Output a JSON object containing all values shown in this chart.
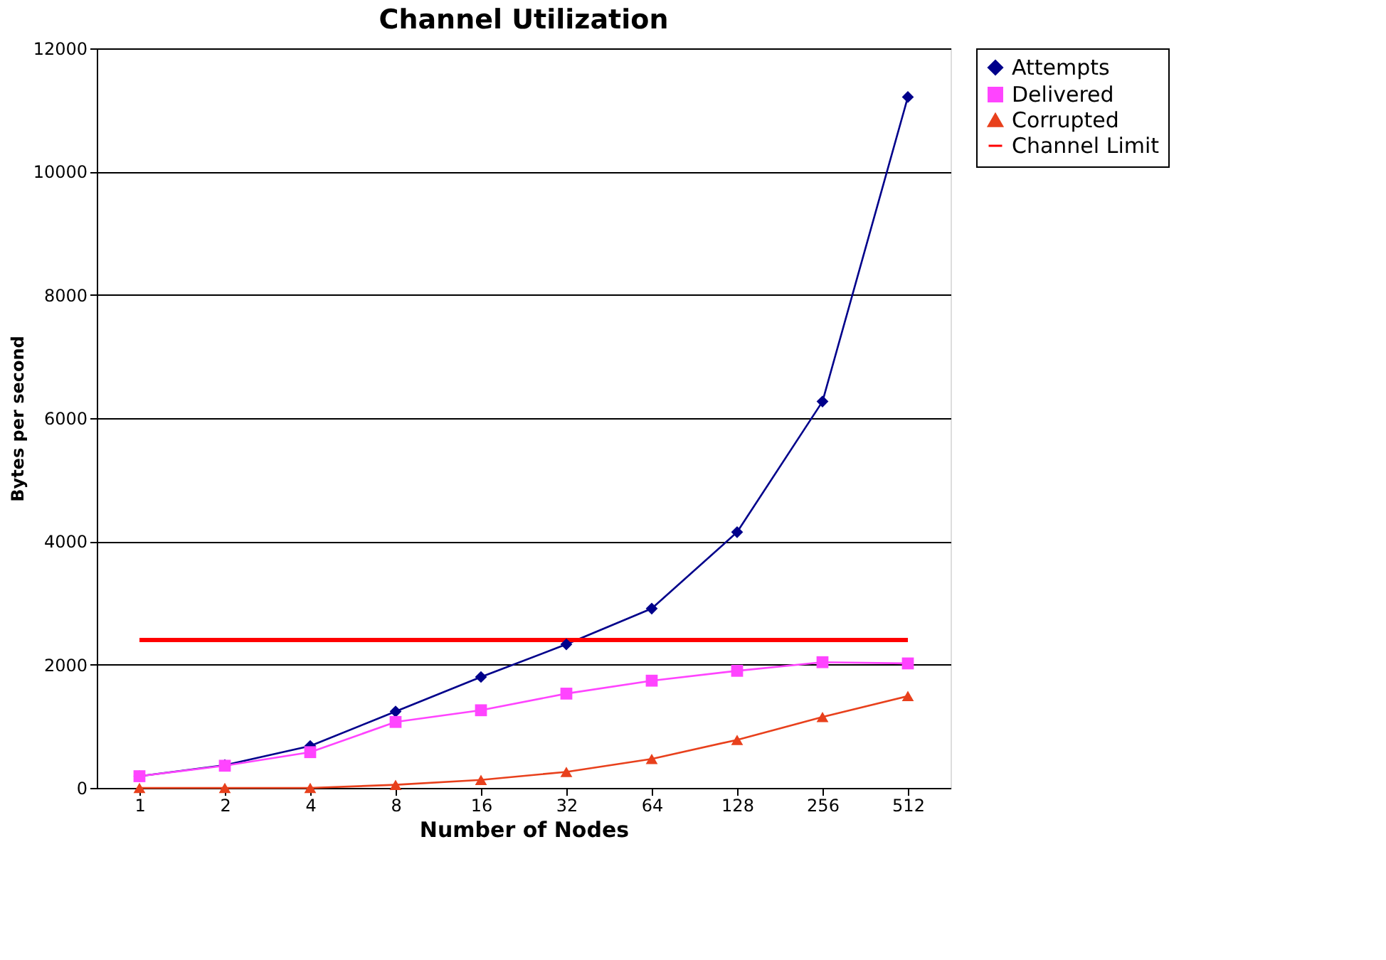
{
  "chart_data": {
    "type": "line",
    "title": "Channel Utilization",
    "xlabel": "Number of Nodes",
    "ylabel": "Bytes per second",
    "categories": [
      "1",
      "2",
      "4",
      "8",
      "16",
      "32",
      "64",
      "128",
      "256",
      "512"
    ],
    "series": [
      {
        "name": "Attempts",
        "color": "#00008b",
        "marker": "diamond",
        "values": [
          190,
          370,
          680,
          1240,
          1800,
          2330,
          2910,
          4150,
          6270,
          11210
        ]
      },
      {
        "name": "Delivered",
        "color": "#ff44ff",
        "marker": "square",
        "values": [
          190,
          360,
          580,
          1070,
          1260,
          1530,
          1740,
          1900,
          2040,
          2020
        ]
      },
      {
        "name": "Corrupted",
        "color": "#e8401c",
        "marker": "triangle",
        "values": [
          0,
          0,
          0,
          50,
          130,
          260,
          470,
          780,
          1150,
          1490
        ]
      },
      {
        "name": "Channel Limit",
        "color": "#ff0000",
        "marker": "none",
        "values": [
          2400,
          2400,
          2400,
          2400,
          2400,
          2400,
          2400,
          2400,
          2400,
          2400
        ]
      }
    ],
    "ylim": [
      0,
      12000
    ],
    "yticks": [
      0,
      2000,
      4000,
      6000,
      8000,
      10000,
      12000
    ],
    "grid": "y",
    "legend": "right",
    "line_style": "solid"
  }
}
